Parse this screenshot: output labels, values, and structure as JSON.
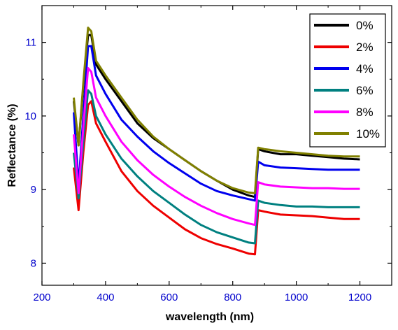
{
  "chart_data": {
    "type": "line",
    "xlabel": "wavelength (nm)",
    "ylabel": "Reflectance (%)",
    "xlim": [
      200,
      1300
    ],
    "ylim": [
      7.7,
      11.5
    ],
    "xticks": [
      200,
      400,
      600,
      800,
      1000,
      1200
    ],
    "yticks": [
      8,
      9,
      10,
      11
    ],
    "xtick_labels": [
      "200",
      "400",
      "600",
      "800",
      "1000",
      "1200"
    ],
    "ytick_labels": [
      "8",
      "9",
      "10",
      "11"
    ],
    "minor_xticks_step": 100,
    "minor_yticks_step": 0.5,
    "grid": false,
    "legend_position": "top-right",
    "x": [
      300,
      315,
      330,
      345,
      355,
      370,
      400,
      450,
      500,
      550,
      600,
      650,
      700,
      750,
      800,
      850,
      870,
      880,
      900,
      950,
      1000,
      1050,
      1100,
      1150,
      1200
    ],
    "series": [
      {
        "name": "0%",
        "color": "#000000",
        "values": [
          10.2,
          9.6,
          10.4,
          11.1,
          11.1,
          10.7,
          10.5,
          10.2,
          9.9,
          9.7,
          9.55,
          9.4,
          9.25,
          9.12,
          9.0,
          8.92,
          8.9,
          9.55,
          9.52,
          9.48,
          9.48,
          9.46,
          9.44,
          9.42,
          9.41
        ]
      },
      {
        "name": "2%",
        "color": "#ee0000",
        "values": [
          9.3,
          8.72,
          9.5,
          10.15,
          10.2,
          9.9,
          9.65,
          9.25,
          8.98,
          8.78,
          8.62,
          8.46,
          8.34,
          8.26,
          8.2,
          8.13,
          8.12,
          8.72,
          8.7,
          8.66,
          8.65,
          8.64,
          8.62,
          8.6,
          8.6
        ]
      },
      {
        "name": "4%",
        "color": "#0000ee",
        "values": [
          10.05,
          9.05,
          10.0,
          10.95,
          10.95,
          10.55,
          10.3,
          9.95,
          9.72,
          9.52,
          9.36,
          9.22,
          9.08,
          8.98,
          8.92,
          8.87,
          8.85,
          9.38,
          9.33,
          9.3,
          9.29,
          9.28,
          9.27,
          9.27,
          9.27
        ]
      },
      {
        "name": "6%",
        "color": "#008080",
        "values": [
          9.5,
          8.88,
          9.65,
          10.35,
          10.3,
          10.0,
          9.75,
          9.42,
          9.18,
          8.98,
          8.82,
          8.66,
          8.52,
          8.42,
          8.35,
          8.28,
          8.27,
          8.85,
          8.82,
          8.79,
          8.77,
          8.77,
          8.76,
          8.76,
          8.76
        ]
      },
      {
        "name": "8%",
        "color": "#ff00ff",
        "values": [
          9.75,
          8.95,
          9.85,
          10.65,
          10.6,
          10.25,
          10.0,
          9.65,
          9.4,
          9.2,
          9.04,
          8.9,
          8.78,
          8.68,
          8.6,
          8.54,
          8.52,
          9.1,
          9.07,
          9.04,
          9.03,
          9.02,
          9.02,
          9.01,
          9.01
        ]
      },
      {
        "name": "10%",
        "color": "#808000",
        "values": [
          10.25,
          9.6,
          10.45,
          11.2,
          11.15,
          10.75,
          10.55,
          10.25,
          9.95,
          9.72,
          9.55,
          9.4,
          9.25,
          9.12,
          9.02,
          8.96,
          8.95,
          9.57,
          9.55,
          9.52,
          9.5,
          9.48,
          9.46,
          9.45,
          9.45
        ]
      }
    ]
  }
}
